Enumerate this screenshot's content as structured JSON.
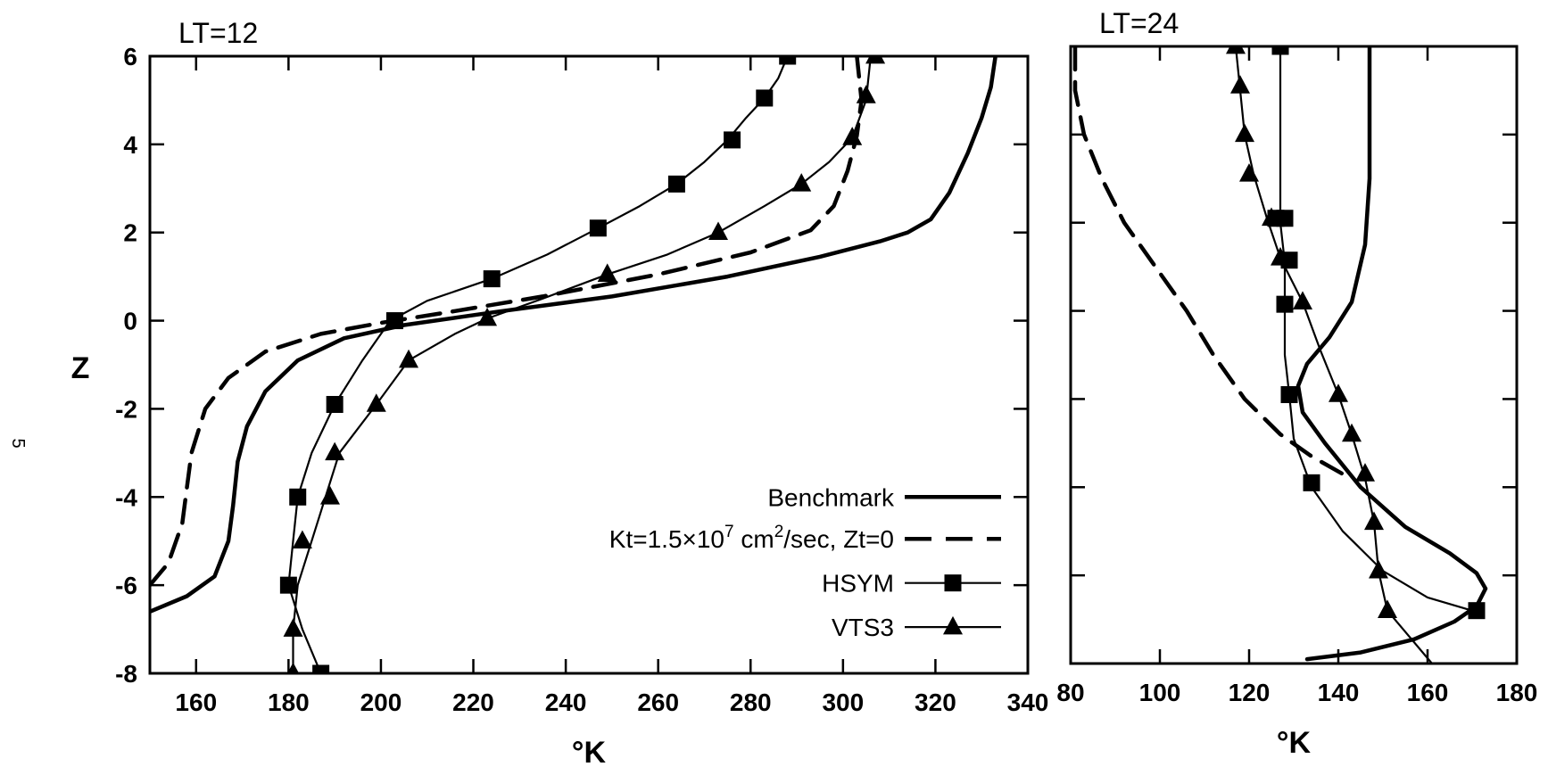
{
  "page_mark": "5",
  "colors": {
    "ink": "#000000",
    "background": "#ffffff"
  },
  "chart_data": [
    {
      "type": "line",
      "title": "LT=12",
      "xlabel": "°K",
      "ylabel": "Z",
      "xlim": [
        150,
        340
      ],
      "ylim": [
        -8,
        6
      ],
      "xticks": [
        160,
        180,
        200,
        220,
        240,
        260,
        280,
        300,
        320,
        340
      ],
      "yticks": [
        6,
        4,
        2,
        0,
        -2,
        -4,
        -6,
        -8
      ],
      "grid": false,
      "legend_position": "bottom-right",
      "legend": [
        {
          "series": 0,
          "label": "Benchmark",
          "style": "thick-solid"
        },
        {
          "series": 1,
          "label_parts": [
            "Kt=1.5×10",
            "7",
            " cm",
            "2",
            "/sec, Zt=0"
          ],
          "style": "dashed"
        },
        {
          "series": 2,
          "label": "HSYM",
          "style": "square-marker"
        },
        {
          "series": 3,
          "label": "VTS3",
          "style": "triangle-marker"
        }
      ],
      "series": [
        {
          "name": "Benchmark",
          "style": "thick-solid",
          "points": [
            [
              150,
              -6.6
            ],
            [
              158,
              -6.25
            ],
            [
              164,
              -5.8
            ],
            [
              167,
              -5.0
            ],
            [
              168,
              -4.2
            ],
            [
              169,
              -3.2
            ],
            [
              171,
              -2.4
            ],
            [
              175,
              -1.6
            ],
            [
              182,
              -0.9
            ],
            [
              192,
              -0.4
            ],
            [
              205,
              -0.1
            ],
            [
              225,
              0.2
            ],
            [
              250,
              0.55
            ],
            [
              275,
              1.0
            ],
            [
              295,
              1.45
            ],
            [
              308,
              1.8
            ],
            [
              314,
              2.0
            ],
            [
              319,
              2.3
            ],
            [
              323,
              2.9
            ],
            [
              327,
              3.8
            ],
            [
              330,
              4.6
            ],
            [
              332,
              5.3
            ],
            [
              333,
              6.0
            ]
          ]
        },
        {
          "name": "Kt=1.5×10^7 cm^2/sec, Zt=0",
          "style": "dashed",
          "points": [
            [
              150,
              -6.0
            ],
            [
              154,
              -5.5
            ],
            [
              157,
              -4.6
            ],
            [
              158,
              -3.8
            ],
            [
              159,
              -3.0
            ],
            [
              162,
              -2.0
            ],
            [
              167,
              -1.3
            ],
            [
              175,
              -0.7
            ],
            [
              187,
              -0.3
            ],
            [
              200,
              -0.05
            ],
            [
              215,
              0.2
            ],
            [
              235,
              0.55
            ],
            [
              260,
              1.05
            ],
            [
              280,
              1.55
            ],
            [
              293,
              2.05
            ],
            [
              298,
              2.6
            ],
            [
              301,
              3.4
            ],
            [
              303,
              4.2
            ],
            [
              304,
              5.0
            ],
            [
              303,
              6.0
            ]
          ]
        },
        {
          "name": "HSYM",
          "style": "square-marker",
          "points": [
            [
              187,
              -8.0
            ],
            [
              183,
              -7.0
            ],
            [
              180,
              -6.0
            ],
            [
              181,
              -5.0
            ],
            [
              182,
              -4.0
            ],
            [
              185,
              -3.0
            ],
            [
              190,
              -1.9
            ],
            [
              196,
              -0.9
            ],
            [
              202,
              0.0
            ],
            [
              210,
              0.45
            ],
            [
              224,
              0.95
            ],
            [
              236,
              1.5
            ],
            [
              247,
              2.1
            ],
            [
              256,
              2.6
            ],
            [
              264,
              3.1
            ],
            [
              270,
              3.6
            ],
            [
              275,
              4.1
            ],
            [
              279,
              4.6
            ],
            [
              283,
              5.05
            ],
            [
              286,
              5.5
            ],
            [
              288,
              6.0
            ]
          ],
          "markers": [
            [
              187,
              -8.0
            ],
            [
              180,
              -6.0
            ],
            [
              182,
              -4.0
            ],
            [
              190,
              -1.9
            ],
            [
              203,
              0.0
            ],
            [
              224,
              0.95
            ],
            [
              247,
              2.1
            ],
            [
              264,
              3.1
            ],
            [
              276,
              4.1
            ],
            [
              283,
              5.05
            ],
            [
              288,
              6.0
            ]
          ]
        },
        {
          "name": "VTS3",
          "style": "triangle-marker",
          "points": [
            [
              181,
              -8.0
            ],
            [
              181,
              -7.0
            ],
            [
              182,
              -6.0
            ],
            [
              185,
              -5.0
            ],
            [
              188,
              -4.0
            ],
            [
              191,
              -3.0
            ],
            [
              199,
              -1.9
            ],
            [
              206,
              -0.9
            ],
            [
              216,
              -0.3
            ],
            [
              223,
              0.05
            ],
            [
              235,
              0.5
            ],
            [
              249,
              1.05
            ],
            [
              262,
              1.5
            ],
            [
              273,
              2.0
            ],
            [
              283,
              2.6
            ],
            [
              291,
              3.1
            ],
            [
              297,
              3.6
            ],
            [
              302,
              4.15
            ],
            [
              305,
              5.0
            ],
            [
              306,
              6.0
            ]
          ],
          "markers": [
            [
              181,
              -8.0
            ],
            [
              181,
              -7.0
            ],
            [
              183,
              -5.0
            ],
            [
              189,
              -4.0
            ],
            [
              190,
              -3.0
            ],
            [
              199,
              -1.9
            ],
            [
              206,
              -0.9
            ],
            [
              223,
              0.05
            ],
            [
              249,
              1.05
            ],
            [
              273,
              2.0
            ],
            [
              291,
              3.1
            ],
            [
              302,
              4.15
            ],
            [
              305,
              5.1
            ],
            [
              307,
              6.0
            ]
          ]
        }
      ]
    },
    {
      "type": "line",
      "title": "LT=24",
      "xlabel": "°K",
      "ylabel": "",
      "xlim": [
        80,
        180
      ],
      "ylim": [
        -8,
        6
      ],
      "xticks": [
        80,
        100,
        120,
        140,
        160,
        180
      ],
      "yticks": [
        6,
        4,
        2,
        0,
        -2,
        -4,
        -6,
        -8
      ],
      "grid": false,
      "series": [
        {
          "name": "Benchmark",
          "style": "thick-solid",
          "points": [
            [
              133,
              -7.9
            ],
            [
              145,
              -7.75
            ],
            [
              157,
              -7.45
            ],
            [
              166,
              -7.05
            ],
            [
              171,
              -6.7
            ],
            [
              173,
              -6.3
            ],
            [
              171,
              -5.95
            ],
            [
              165,
              -5.5
            ],
            [
              155,
              -4.9
            ],
            [
              145,
              -4.0
            ],
            [
              137,
              -3.0
            ],
            [
              132,
              -2.3
            ],
            [
              131,
              -1.7
            ],
            [
              133,
              -1.2
            ],
            [
              138,
              -0.6
            ],
            [
              143,
              0.2
            ],
            [
              146,
              1.5
            ],
            [
              147,
              3.0
            ],
            [
              147,
              4.5
            ],
            [
              147,
              6.0
            ]
          ]
        },
        {
          "name": "Kt=1.5×10^7 cm^2/sec, Zt=0",
          "style": "dashed",
          "points": [
            [
              81,
              6.0
            ],
            [
              81,
              5.0
            ],
            [
              83,
              4.0
            ],
            [
              87,
              3.0
            ],
            [
              92,
              2.0
            ],
            [
              99,
              1.0
            ],
            [
              106,
              0.0
            ],
            [
              112,
              -1.0
            ],
            [
              119,
              -2.0
            ],
            [
              127,
              -2.8
            ],
            [
              134,
              -3.3
            ],
            [
              141,
              -3.7
            ]
          ]
        },
        {
          "name": "HSYM",
          "style": "square-marker",
          "points": [
            [
              170,
              -6.8
            ],
            [
              160,
              -6.5
            ],
            [
              150,
              -5.9
            ],
            [
              141,
              -5.0
            ],
            [
              134,
              -4.0
            ],
            [
              130,
              -2.9
            ],
            [
              129,
              -1.9
            ],
            [
              128,
              -1.0
            ],
            [
              128,
              0.1
            ],
            [
              128,
              1.1
            ],
            [
              127,
              2.0
            ],
            [
              127,
              3.0
            ],
            [
              127,
              4.0
            ],
            [
              127,
              5.0
            ],
            [
              127,
              6.0
            ]
          ],
          "markers": [
            [
              171,
              -6.8
            ],
            [
              134,
              -3.9
            ],
            [
              129,
              -1.9
            ],
            [
              128,
              0.15
            ],
            [
              129,
              1.15
            ],
            [
              128,
              2.1
            ],
            [
              126,
              2.1
            ],
            [
              127,
              6.0
            ]
          ]
        },
        {
          "name": "VTS3",
          "style": "triangle-marker",
          "points": [
            [
              161,
              -8.0
            ],
            [
              151,
              -6.8
            ],
            [
              149,
              -5.9
            ],
            [
              148,
              -4.8
            ],
            [
              146,
              -3.8
            ],
            [
              143,
              -2.8
            ],
            [
              140,
              -1.9
            ],
            [
              136,
              -0.9
            ],
            [
              132,
              0.2
            ],
            [
              127,
              1.2
            ],
            [
              124,
              2.1
            ],
            [
              121,
              3.1
            ],
            [
              119,
              4.0
            ],
            [
              118,
              5.0
            ],
            [
              117,
              6.0
            ]
          ],
          "markers": [
            [
              151,
              -6.8
            ],
            [
              149,
              -5.9
            ],
            [
              148,
              -4.8
            ],
            [
              146,
              -3.7
            ],
            [
              143,
              -2.8
            ],
            [
              140,
              -1.9
            ],
            [
              132,
              0.2
            ],
            [
              127,
              1.2
            ],
            [
              125,
              2.1
            ],
            [
              120,
              3.1
            ],
            [
              119,
              4.0
            ],
            [
              118,
              5.1
            ],
            [
              117,
              6.0
            ]
          ]
        }
      ]
    }
  ]
}
